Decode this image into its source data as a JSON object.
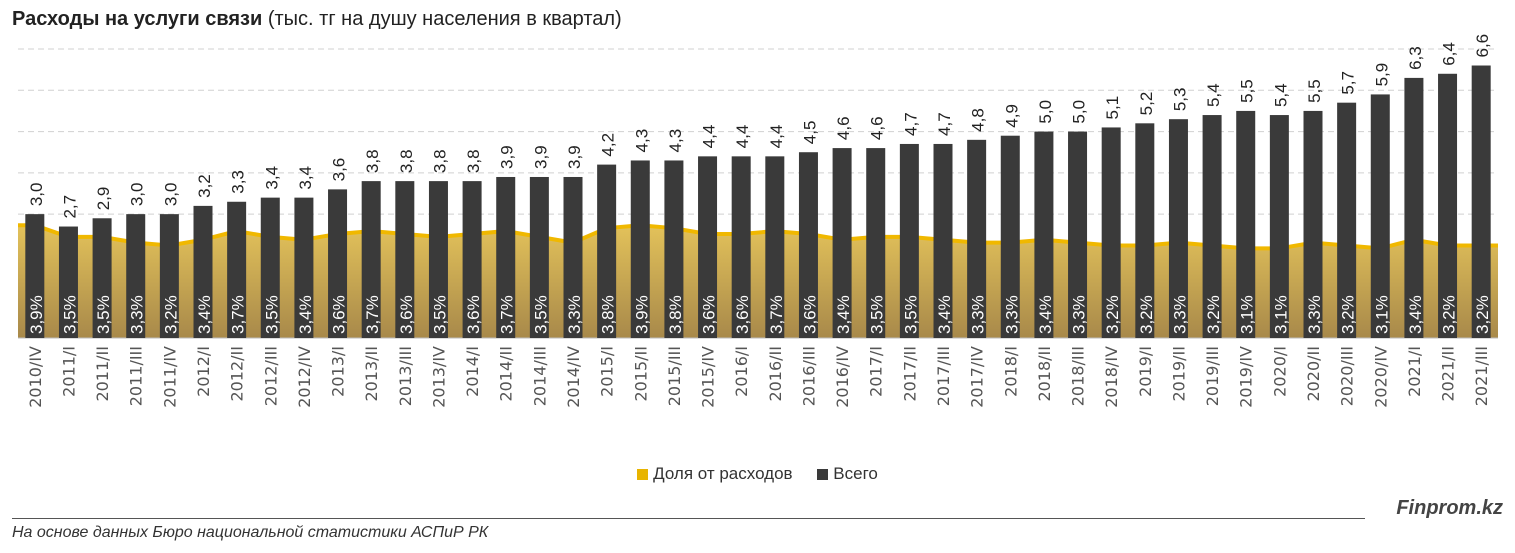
{
  "title_bold": "Расходы на услуги связи",
  "title_rest": " (тыс. тг на душу населения в квартал)",
  "legend": {
    "share": "Доля от расходов",
    "total": "Всего"
  },
  "brand": "Finprom.kz",
  "source": "На основе данных Бюро национальной статистики АСПиР РК",
  "chart_data": {
    "type": "bar",
    "categories": [
      "2010/IV",
      "2011/I",
      "2011/II",
      "2011/III",
      "2011/IV",
      "2012/I",
      "2012/II",
      "2012/III",
      "2012/IV",
      "2013/I",
      "2013/II",
      "2013/III",
      "2013/IV",
      "2014/I",
      "2014/II",
      "2014/III",
      "2014/IV",
      "2015/I",
      "2015/II",
      "2015/III",
      "2015/IV",
      "2016/I",
      "2016/II",
      "2016/III",
      "2016/IV",
      "2017/I",
      "2017/II",
      "2017/III",
      "2017/IV",
      "2018/I",
      "2018/II",
      "2018/III",
      "2018/IV",
      "2019/I",
      "2019/II",
      "2019/III",
      "2019/IV",
      "2020/I",
      "2020/II",
      "2020/III",
      "2020/IV",
      "2021/I",
      "2021/II",
      "2021/III"
    ],
    "series": [
      {
        "name": "Всего",
        "type": "bar",
        "color": "#3a3a3a",
        "axis": "primary",
        "values": [
          3.0,
          2.7,
          2.9,
          3.0,
          3.0,
          3.2,
          3.3,
          3.4,
          3.4,
          3.6,
          3.8,
          3.8,
          3.8,
          3.8,
          3.9,
          3.9,
          3.9,
          4.2,
          4.3,
          4.3,
          4.4,
          4.4,
          4.4,
          4.5,
          4.6,
          4.6,
          4.7,
          4.7,
          4.8,
          4.9,
          5.0,
          5.0,
          5.1,
          5.2,
          5.3,
          5.4,
          5.5,
          5.4,
          5.5,
          5.7,
          5.9,
          6.3,
          6.4,
          6.6
        ]
      },
      {
        "name": "Доля от расходов",
        "type": "area",
        "color": "#e8b400",
        "axis": "secondary",
        "unit": "%",
        "values": [
          3.9,
          3.5,
          3.5,
          3.3,
          3.2,
          3.4,
          3.7,
          3.5,
          3.4,
          3.6,
          3.7,
          3.6,
          3.5,
          3.6,
          3.7,
          3.5,
          3.3,
          3.8,
          3.9,
          3.8,
          3.6,
          3.6,
          3.7,
          3.6,
          3.4,
          3.5,
          3.5,
          3.4,
          3.3,
          3.3,
          3.4,
          3.3,
          3.2,
          3.2,
          3.3,
          3.2,
          3.1,
          3.1,
          3.3,
          3.2,
          3.1,
          3.4,
          3.2,
          3.2
        ]
      }
    ],
    "ylim": [
      0,
      7
    ],
    "y2lim": [
      0,
      10
    ],
    "grid": true,
    "legend_position": "bottom",
    "decimal_separator": ","
  }
}
